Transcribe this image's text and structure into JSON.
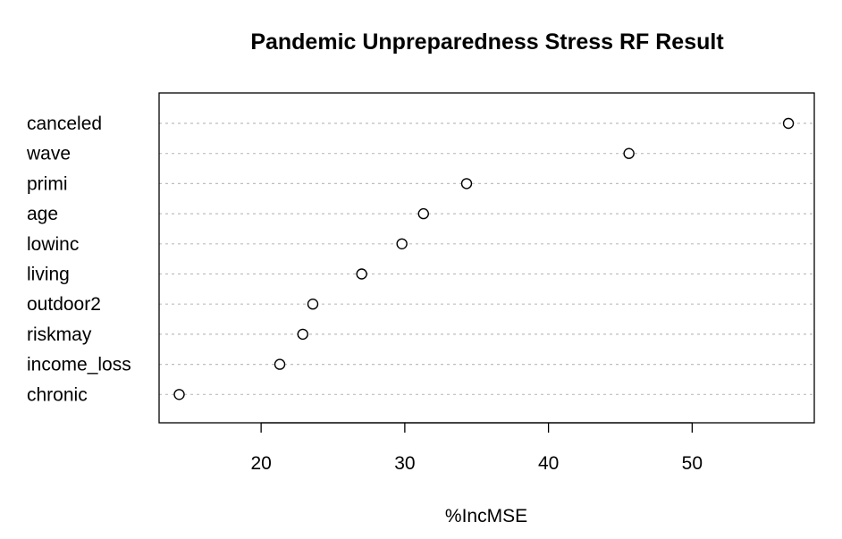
{
  "chart_data": {
    "type": "scatter",
    "title": "Pandemic Unpreparedness Stress RF Result",
    "xlabel": "%IncMSE",
    "ylabel": "",
    "xlim": [
      12.9,
      58.5
    ],
    "xticks": [
      20,
      30,
      40,
      50
    ],
    "grid": "dotted horizontal lines per category",
    "categories": [
      "canceled",
      "wave",
      "primi",
      "age",
      "lowinc",
      "living",
      "outdoor2",
      "riskmay",
      "income_loss",
      "chronic"
    ],
    "values": [
      56.7,
      45.6,
      34.3,
      31.3,
      29.8,
      27.0,
      23.6,
      22.9,
      21.3,
      14.3
    ],
    "colors": {
      "axis": "#000000",
      "grid": "#bebebe",
      "point_stroke": "#000000",
      "point_fill": "#ffffff"
    }
  }
}
